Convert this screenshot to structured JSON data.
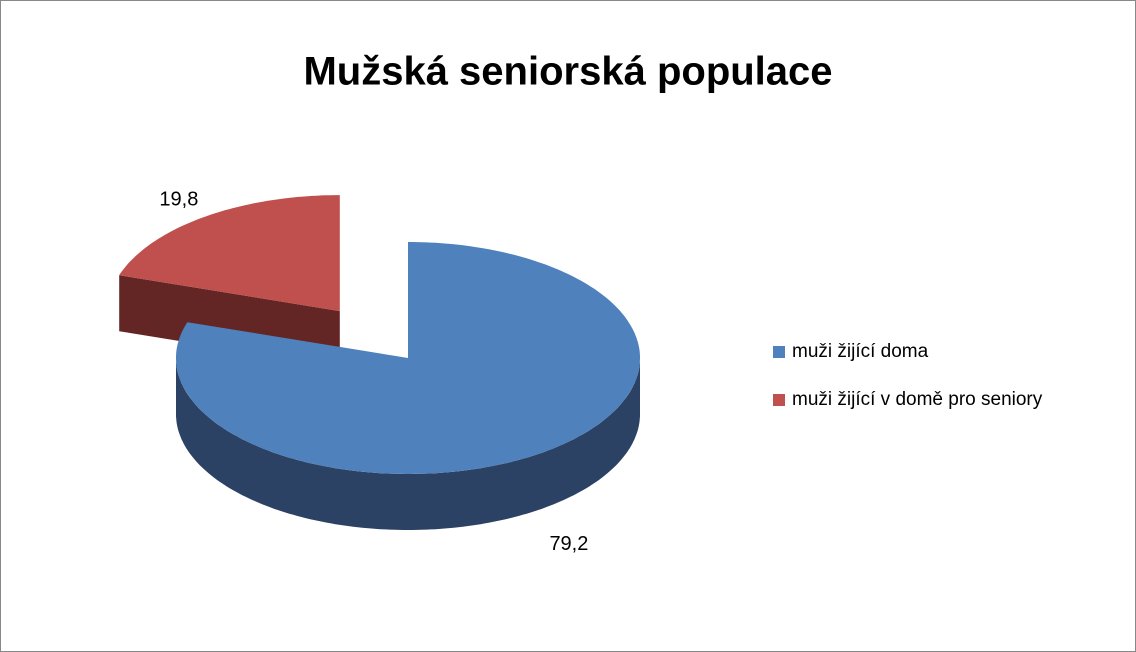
{
  "chart_data": {
    "type": "pie",
    "title": "Mužská seniorská populace",
    "categories": [
      "muži žijící doma",
      "muži žijící v domě pro seniory"
    ],
    "values": [
      79.2,
      19.8
    ],
    "value_labels": [
      "79,2",
      "19,8"
    ],
    "colors": [
      "#4f81bd",
      "#c0504d"
    ],
    "side_colors": [
      "#2b4264",
      "#632624"
    ],
    "legend": "right",
    "three_d": true
  }
}
